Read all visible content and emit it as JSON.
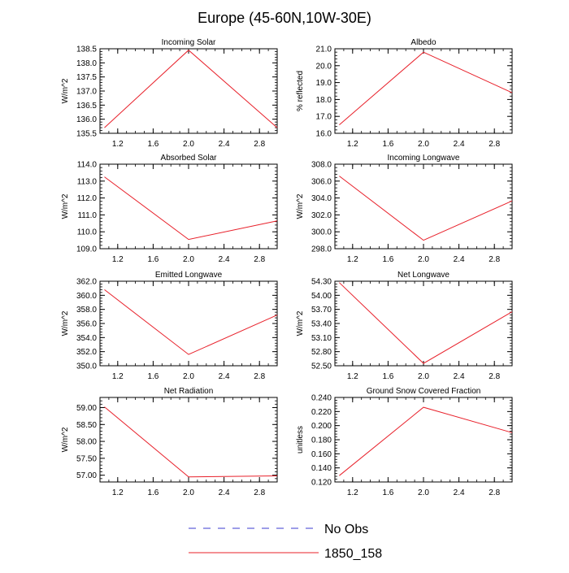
{
  "figure": {
    "title": "Europe (45-60N,10W-30E)"
  },
  "legend": {
    "entries": [
      {
        "label": "No Obs",
        "color": "#3b3bd0",
        "style": "dashed"
      },
      {
        "label": "1850_158",
        "color": "#e8202a",
        "style": "solid"
      }
    ]
  },
  "chart_data": [
    {
      "type": "line",
      "title": "Incoming Solar",
      "ylabel": "W/m^2",
      "x": [
        1.05,
        2.0,
        3.0
      ],
      "xlim": [
        1.0,
        3.0
      ],
      "xticks": [
        1.2,
        1.6,
        2.0,
        2.4,
        2.8
      ],
      "xtick_labels": [
        "1.2",
        "1.6",
        "2.0",
        "2.4",
        "2.8"
      ],
      "ylim": [
        135.5,
        138.5
      ],
      "yticks": [
        135.5,
        136.0,
        136.5,
        137.0,
        137.5,
        138.0,
        138.5
      ],
      "ytick_labels": [
        "135.5",
        "136.0",
        "136.5",
        "137.0",
        "137.5",
        "138.0",
        "138.5"
      ],
      "series": [
        {
          "name": "1850_158",
          "values": [
            135.7,
            138.45,
            135.7
          ]
        }
      ]
    },
    {
      "type": "line",
      "title": "Albedo",
      "ylabel": "% reflected",
      "x": [
        1.05,
        2.0,
        3.0
      ],
      "xlim": [
        1.0,
        3.0
      ],
      "xticks": [
        1.2,
        1.6,
        2.0,
        2.4,
        2.8
      ],
      "xtick_labels": [
        "1.2",
        "1.6",
        "2.0",
        "2.4",
        "2.8"
      ],
      "ylim": [
        16.0,
        21.0
      ],
      "yticks": [
        16.0,
        17.0,
        18.0,
        19.0,
        20.0,
        21.0
      ],
      "ytick_labels": [
        "16.0",
        "17.0",
        "18.0",
        "19.0",
        "20.0",
        "21.0"
      ],
      "series": [
        {
          "name": "1850_158",
          "values": [
            16.5,
            20.8,
            18.4
          ]
        }
      ]
    },
    {
      "type": "line",
      "title": "Absorbed Solar",
      "ylabel": "W/m^2",
      "x": [
        1.05,
        2.0,
        3.0
      ],
      "xlim": [
        1.0,
        3.0
      ],
      "xticks": [
        1.2,
        1.6,
        2.0,
        2.4,
        2.8
      ],
      "xtick_labels": [
        "1.2",
        "1.6",
        "2.0",
        "2.4",
        "2.8"
      ],
      "ylim": [
        109.0,
        114.0
      ],
      "yticks": [
        109.0,
        110.0,
        111.0,
        112.0,
        113.0,
        114.0
      ],
      "ytick_labels": [
        "109.0",
        "110.0",
        "111.0",
        "112.0",
        "113.0",
        "114.0"
      ],
      "series": [
        {
          "name": "1850_158",
          "values": [
            113.25,
            109.55,
            110.65
          ]
        }
      ]
    },
    {
      "type": "line",
      "title": "Incoming Longwave",
      "ylabel": "W/m^2",
      "x": [
        1.05,
        2.0,
        3.0
      ],
      "xlim": [
        1.0,
        3.0
      ],
      "xticks": [
        1.2,
        1.6,
        2.0,
        2.4,
        2.8
      ],
      "xtick_labels": [
        "1.2",
        "1.6",
        "2.0",
        "2.4",
        "2.8"
      ],
      "ylim": [
        298.0,
        308.0
      ],
      "yticks": [
        298.0,
        300.0,
        302.0,
        304.0,
        306.0,
        308.0
      ],
      "ytick_labels": [
        "298.0",
        "300.0",
        "302.0",
        "304.0",
        "306.0",
        "308.0"
      ],
      "series": [
        {
          "name": "1850_158",
          "values": [
            306.6,
            299.0,
            303.65
          ]
        }
      ]
    },
    {
      "type": "line",
      "title": "Emitted Longwave",
      "ylabel": "W/m^2",
      "x": [
        1.05,
        2.0,
        3.0
      ],
      "xlim": [
        1.0,
        3.0
      ],
      "xticks": [
        1.2,
        1.6,
        2.0,
        2.4,
        2.8
      ],
      "xtick_labels": [
        "1.2",
        "1.6",
        "2.0",
        "2.4",
        "2.8"
      ],
      "ylim": [
        350.0,
        362.0
      ],
      "yticks": [
        350.0,
        352.0,
        354.0,
        356.0,
        358.0,
        360.0,
        362.0
      ],
      "ytick_labels": [
        "350.0",
        "352.0",
        "354.0",
        "356.0",
        "358.0",
        "360.0",
        "362.0"
      ],
      "series": [
        {
          "name": "1850_158",
          "values": [
            360.8,
            351.6,
            357.2
          ]
        }
      ]
    },
    {
      "type": "line",
      "title": "Net Longwave",
      "ylabel": "W/m^2",
      "x": [
        1.05,
        2.0,
        3.0
      ],
      "xlim": [
        1.0,
        3.0
      ],
      "xticks": [
        1.2,
        1.6,
        2.0,
        2.4,
        2.8
      ],
      "xtick_labels": [
        "1.2",
        "1.6",
        "2.0",
        "2.4",
        "2.8"
      ],
      "ylim": [
        52.5,
        54.3
      ],
      "yticks": [
        52.5,
        52.8,
        53.1,
        53.4,
        53.7,
        54.0,
        54.3
      ],
      "ytick_labels": [
        "52.50",
        "52.80",
        "53.10",
        "53.40",
        "53.70",
        "54.00",
        "54.30"
      ],
      "series": [
        {
          "name": "1850_158",
          "values": [
            54.27,
            52.55,
            53.65
          ]
        }
      ]
    },
    {
      "type": "line",
      "title": "Net Radiation",
      "ylabel": "W/m^2",
      "x": [
        1.05,
        2.0,
        3.0
      ],
      "xlim": [
        1.0,
        3.0
      ],
      "xticks": [
        1.2,
        1.6,
        2.0,
        2.4,
        2.8
      ],
      "xtick_labels": [
        "1.2",
        "1.6",
        "2.0",
        "2.4",
        "2.8"
      ],
      "ylim": [
        56.8,
        59.3
      ],
      "yticks": [
        57.0,
        57.5,
        58.0,
        58.5,
        59.0
      ],
      "ytick_labels": [
        "57.00",
        "57.50",
        "58.00",
        "58.50",
        "59.00"
      ],
      "series": [
        {
          "name": "1850_158",
          "values": [
            59.02,
            56.95,
            56.98
          ]
        }
      ]
    },
    {
      "type": "line",
      "title": "Ground Snow Covered Fraction",
      "ylabel": "unitless",
      "x": [
        1.05,
        2.0,
        3.0
      ],
      "xlim": [
        1.0,
        3.0
      ],
      "xticks": [
        1.2,
        1.6,
        2.0,
        2.4,
        2.8
      ],
      "xtick_labels": [
        "1.2",
        "1.6",
        "2.0",
        "2.4",
        "2.8"
      ],
      "ylim": [
        0.12,
        0.24
      ],
      "yticks": [
        0.12,
        0.14,
        0.16,
        0.18,
        0.2,
        0.22,
        0.24
      ],
      "ytick_labels": [
        "0.120",
        "0.140",
        "0.160",
        "0.180",
        "0.200",
        "0.220",
        "0.240"
      ],
      "series": [
        {
          "name": "1850_158",
          "values": [
            0.129,
            0.226,
            0.19
          ]
        }
      ]
    }
  ]
}
